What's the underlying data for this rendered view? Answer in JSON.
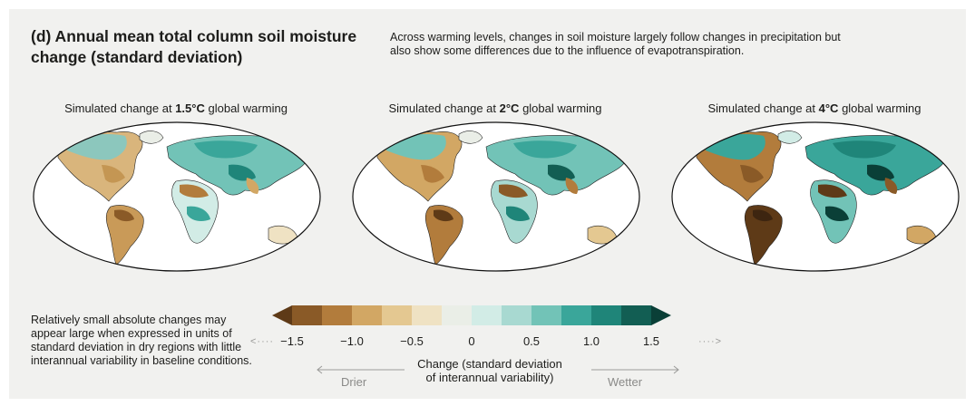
{
  "panel_title": "(d) Annual mean total column soil moisture change (standard deviation)",
  "description": "Across warming levels, changes in soil moisture largely follow changes in precipitation but also show some differences due to the influence of evapotranspiration.",
  "maps": [
    {
      "prefix": "Simulated change at ",
      "level": "1.5°C",
      "suffix": " global warming"
    },
    {
      "prefix": "Simulated change at ",
      "level": "2°C",
      "suffix": " global warming"
    },
    {
      "prefix": "Simulated change at ",
      "level": "4°C",
      "suffix": " global warming"
    }
  ],
  "note": "Relatively small absolute changes may appear large when expressed in units of standard deviation in dry regions with little interannual variability in baseline conditions.",
  "colorbar": {
    "ticks": [
      "−1.5",
      "−1.0",
      "−0.5",
      "0",
      "0.5",
      "1.0",
      "1.5"
    ],
    "colors": [
      "#5e3a17",
      "#8a5a27",
      "#b27c3c",
      "#d2a764",
      "#e4c891",
      "#efe2c3",
      "#eaeee7",
      "#d2ece6",
      "#a8d9d1",
      "#72c3b7",
      "#3aa69a",
      "#1f8579",
      "#125e53",
      "#0a3f37"
    ],
    "caption_line1": "Change (standard deviation",
    "caption_line2": "of interannual variability)",
    "drier_label": "Drier",
    "wetter_label": "Wetter"
  }
}
